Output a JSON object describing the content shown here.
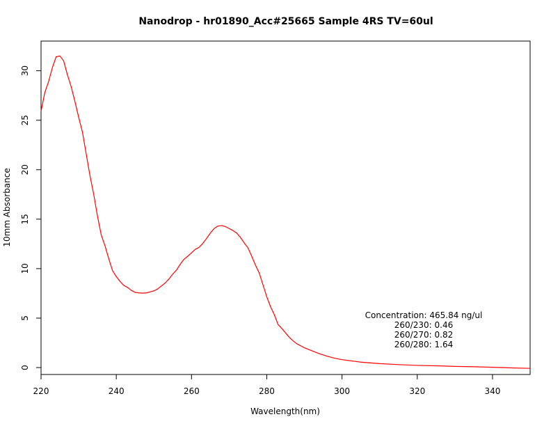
{
  "chart_data": {
    "type": "line",
    "title": "Nanodrop - hr01890_Acc#25665 Sample 4RS  TV=60ul",
    "xlabel": "Wavelength(nm)",
    "ylabel": "10mm Absorbance",
    "xlim": [
      220,
      350
    ],
    "ylim": [
      -0.7,
      33
    ],
    "x_ticks": [
      220,
      240,
      260,
      280,
      300,
      320,
      340
    ],
    "y_ticks": [
      0,
      5,
      10,
      15,
      20,
      25,
      30
    ],
    "grid": false,
    "legend": "none",
    "series": [
      {
        "color": "#ff0000",
        "x": [
          220,
          221,
          222,
          223,
          224,
          225,
          226,
          227,
          228,
          229,
          230,
          231,
          232,
          233,
          234,
          235,
          236,
          237,
          238,
          239,
          240,
          241,
          242,
          243,
          244,
          245,
          246,
          247,
          248,
          249,
          250,
          251,
          252,
          253,
          254,
          255,
          256,
          257,
          258,
          259,
          260,
          261,
          262,
          263,
          264,
          265,
          266,
          267,
          268,
          269,
          270,
          271,
          272,
          273,
          274,
          275,
          276,
          277,
          278,
          279,
          280,
          281,
          282,
          283,
          284,
          285,
          286,
          287,
          288,
          289,
          290,
          292,
          294,
          296,
          298,
          300,
          305,
          310,
          315,
          320,
          325,
          330,
          335,
          340,
          345,
          350
        ],
        "y": [
          25.9,
          27.8,
          28.9,
          30.3,
          31.4,
          31.5,
          31.0,
          29.6,
          28.4,
          26.9,
          25.3,
          23.8,
          21.6,
          19.4,
          17.5,
          15.3,
          13.4,
          12.3,
          11.0,
          9.8,
          9.2,
          8.7,
          8.3,
          8.1,
          7.8,
          7.6,
          7.55,
          7.52,
          7.55,
          7.65,
          7.75,
          7.95,
          8.25,
          8.55,
          8.95,
          9.45,
          9.85,
          10.45,
          10.95,
          11.25,
          11.6,
          11.95,
          12.15,
          12.55,
          13.05,
          13.6,
          14.05,
          14.3,
          14.35,
          14.25,
          14.05,
          13.85,
          13.6,
          13.15,
          12.6,
          12.1,
          11.25,
          10.35,
          9.55,
          8.35,
          7.15,
          6.15,
          5.35,
          4.35,
          3.95,
          3.5,
          3.05,
          2.7,
          2.4,
          2.2,
          2.0,
          1.7,
          1.4,
          1.15,
          0.95,
          0.8,
          0.55,
          0.4,
          0.3,
          0.22,
          0.18,
          0.12,
          0.08,
          0.03,
          -0.03,
          -0.08
        ]
      }
    ],
    "annotations": [
      "Concentration: 465.84 ng/ul",
      "260/230: 0.46",
      "260/270: 0.82",
      "260/280: 1.64"
    ]
  }
}
